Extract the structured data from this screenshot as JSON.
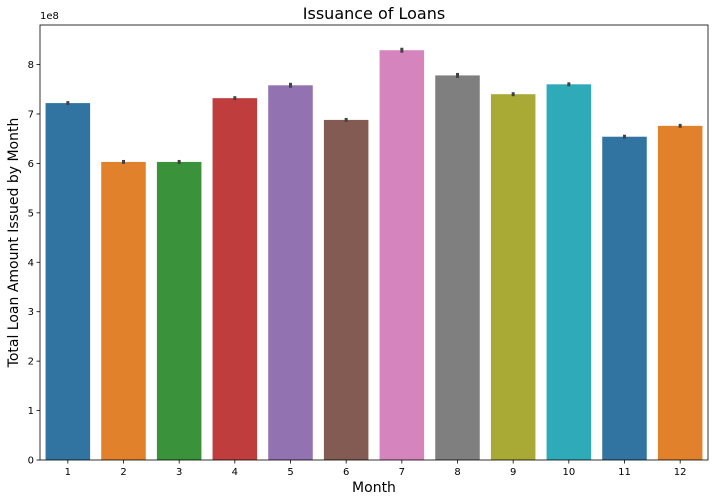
{
  "chart_data": {
    "type": "bar",
    "title": "Issuance of Loans",
    "xlabel": "Month",
    "ylabel": "Total Loan Amount Issued by Month",
    "y_offset_label": "1e8",
    "y_scale": 100000000,
    "categories": [
      "1",
      "2",
      "3",
      "4",
      "5",
      "6",
      "7",
      "8",
      "9",
      "10",
      "11",
      "12"
    ],
    "values": [
      722000000,
      603000000,
      603000000,
      732000000,
      758000000,
      688000000,
      829000000,
      778000000,
      740000000,
      760000000,
      654000000,
      676000000
    ],
    "error": [
      4000000,
      4000000,
      4000000,
      4000000,
      5000000,
      4000000,
      5000000,
      5000000,
      4000000,
      4000000,
      4000000,
      4000000
    ],
    "yticks": [
      "0",
      "1",
      "2",
      "3",
      "4",
      "5",
      "6",
      "7",
      "8"
    ],
    "ylim": [
      0,
      880000000
    ],
    "grid": false,
    "colors": [
      "#3274a1",
      "#e1812c",
      "#3a923a",
      "#c03d3e",
      "#9372b2",
      "#845b53",
      "#d684bd",
      "#7f7f7f",
      "#a9aa35",
      "#2eaab8",
      "#3274a1",
      "#e1812c"
    ],
    "errorbar_color": "#424242"
  }
}
